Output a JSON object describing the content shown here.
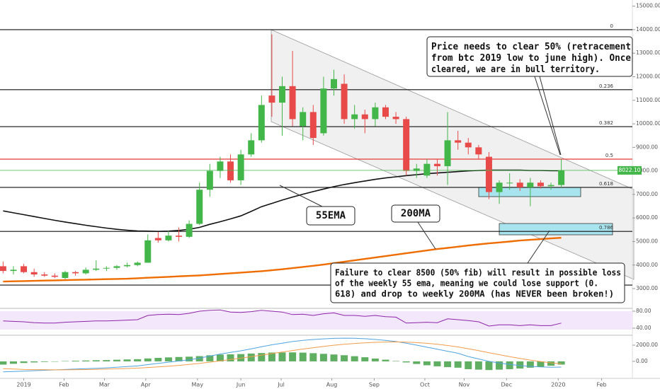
{
  "chart_data": [
    {
      "type": "candlestick",
      "xlim": [
        -0.3,
        59.3
      ],
      "ylim": [
        2190,
        15260
      ],
      "yticks": [
        {
          "value": 3000,
          "label": "3000.00"
        },
        {
          "value": 4000,
          "label": "4000.00"
        },
        {
          "value": 5000,
          "label": "5000.00"
        },
        {
          "value": 6000,
          "label": "6000.00"
        },
        {
          "value": 7000,
          "label": "7000.00"
        },
        {
          "value": 8000,
          "label": "8000.00"
        },
        {
          "value": 9000,
          "label": "9000.00"
        },
        {
          "value": 10000,
          "label": "10000.00"
        },
        {
          "value": 11000,
          "label": "11000.00"
        },
        {
          "value": 12000,
          "label": "12000.00"
        },
        {
          "value": 13000,
          "label": "13000.00"
        },
        {
          "value": 14000,
          "label": "14000.00"
        },
        {
          "value": 15000,
          "label": "15000.00"
        }
      ],
      "xticks": [
        {
          "value": 2.0,
          "label": "2019"
        },
        {
          "value": 5.9,
          "label": "Feb"
        },
        {
          "value": 9.8,
          "label": "Mar"
        },
        {
          "value": 13.8,
          "label": "Apr"
        },
        {
          "value": 18.8,
          "label": "May"
        },
        {
          "value": 23.0,
          "label": "Jun"
        },
        {
          "value": 26.9,
          "label": "Jul"
        },
        {
          "value": 31.8,
          "label": "Aug"
        },
        {
          "value": 35.9,
          "label": "Sep"
        },
        {
          "value": 40.8,
          "label": "Oct"
        },
        {
          "value": 44.6,
          "label": "Nov"
        },
        {
          "value": 48.7,
          "label": "Dec"
        },
        {
          "value": 53.7,
          "label": "2020"
        },
        {
          "value": 57.9,
          "label": "Feb"
        }
      ],
      "open": [
        3950,
        3750,
        3950,
        3700,
        3600,
        3550,
        3450,
        3700,
        3650,
        3800,
        3850,
        3880,
        3950,
        4000,
        4100,
        5150,
        5050,
        5250,
        5200,
        5750,
        7200,
        8000,
        8400,
        7600,
        8700,
        9300,
        11200,
        10900,
        11600,
        9900,
        10500,
        9600,
        11500,
        11700,
        10200,
        10400,
        10200,
        10700,
        10300,
        10200,
        8000,
        7800,
        8300,
        8200,
        9300,
        9200,
        9000,
        8600,
        7100,
        7500,
        7500,
        7300,
        7500,
        7350,
        7400
      ],
      "high": [
        4150,
        3950,
        4050,
        3850,
        3700,
        3650,
        3750,
        3750,
        3900,
        4200,
        3950,
        4000,
        4100,
        4150,
        5300,
        5400,
        5450,
        5600,
        5900,
        7500,
        8300,
        8600,
        8700,
        8900,
        9600,
        11200,
        13800,
        12000,
        13100,
        10700,
        10800,
        12000,
        12300,
        12100,
        10800,
        10600,
        10900,
        10800,
        10500,
        10300,
        8300,
        8500,
        8500,
        10500,
        9700,
        9400,
        9100,
        8800,
        7600,
        7900,
        7650,
        7700,
        7600,
        7500,
        8500
      ],
      "low": [
        3650,
        3600,
        3650,
        3500,
        3500,
        3450,
        3400,
        3550,
        3600,
        3750,
        3750,
        3800,
        3900,
        3950,
        4100,
        4950,
        5000,
        5000,
        5150,
        5700,
        6900,
        7700,
        7500,
        7400,
        8600,
        9200,
        10300,
        9500,
        9900,
        9300,
        9100,
        9500,
        11200,
        10000,
        9800,
        9600,
        9900,
        10200,
        10000,
        7800,
        7700,
        7700,
        7800,
        7400,
        8900,
        8700,
        8500,
        6800,
        6600,
        7200,
        7150,
        6500,
        7250,
        7200,
        7300
      ],
      "close": [
        3750,
        3800,
        3700,
        3600,
        3550,
        3500,
        3700,
        3650,
        3800,
        3850,
        3880,
        3950,
        4000,
        4100,
        5050,
        5050,
        5250,
        5200,
        5750,
        7200,
        8000,
        8400,
        7600,
        8700,
        9300,
        10800,
        10900,
        11600,
        10200,
        10500,
        9400,
        11500,
        11900,
        10200,
        10400,
        10200,
        10700,
        10300,
        10200,
        8000,
        8100,
        8300,
        8200,
        9300,
        9200,
        9000,
        8700,
        7100,
        7500,
        7500,
        7300,
        7500,
        7350,
        7400,
        8022.1
      ],
      "up_color": "#43b649",
      "down_color": "#e84a4a",
      "last_price_label": "8022.10",
      "series": [
        {
          "name": "55EMA",
          "color": "#111111",
          "values": [
            6300,
            6220,
            6140,
            6060,
            5980,
            5900,
            5830,
            5760,
            5690,
            5630,
            5570,
            5520,
            5480,
            5450,
            5440,
            5430,
            5440,
            5470,
            5520,
            5600,
            5730,
            5840,
            5960,
            6090,
            6280,
            6480,
            6620,
            6760,
            6890,
            7010,
            7120,
            7230,
            7330,
            7420,
            7500,
            7570,
            7640,
            7700,
            7750,
            7800,
            7840,
            7880,
            7910,
            7940,
            7970,
            8000,
            8020,
            8030,
            8030,
            8030,
            8030,
            8020,
            8020,
            8010,
            8010
          ]
        },
        {
          "name": "200MA",
          "color": "#ef6c00",
          "values": [
            3300,
            3310,
            3320,
            3330,
            3340,
            3350,
            3360,
            3370,
            3380,
            3390,
            3400,
            3410,
            3420,
            3440,
            3460,
            3480,
            3500,
            3520,
            3540,
            3560,
            3590,
            3620,
            3650,
            3680,
            3710,
            3740,
            3780,
            3820,
            3870,
            3920,
            3970,
            4020,
            4080,
            4140,
            4200,
            4260,
            4320,
            4380,
            4440,
            4500,
            4560,
            4620,
            4680,
            4730,
            4780,
            4830,
            4880,
            4920,
            4960,
            5000,
            5040,
            5070,
            5100,
            5130,
            5160
          ]
        }
      ],
      "levels": [
        {
          "value": 14000,
          "label": "0",
          "color": "#111111"
        },
        {
          "value": 11450,
          "label": "0.236",
          "color": "#111111"
        },
        {
          "value": 9880,
          "label": "0.382",
          "color": "#111111"
        },
        {
          "value": 8500,
          "label": "0.5",
          "color": "#e53935"
        },
        {
          "value": 7300,
          "label": "0.618",
          "color": "#111111"
        },
        {
          "value": 5430,
          "label": "0.786",
          "color": "#111111"
        }
      ],
      "support": 3150,
      "annotations": [
        {
          "lines": [
            "Price needs to clear 50% (retracement",
            "from btc 2019 low to june high). Once",
            "cleared, we are in bull territory."
          ]
        },
        {
          "lines": [
            "Failure to clear 8500 (50% fib) will result in possible loss",
            "of the weekly 55 ema, meaning we could lose support (0.",
            "618) and drop to weekly 200MA (has NEVER been broken!)"
          ]
        }
      ]
    },
    {
      "type": "line",
      "ylim": [
        25,
        85
      ],
      "yticks": [
        {
          "value": 80,
          "label": "80.00"
        },
        {
          "value": 40,
          "label": "40.00"
        }
      ],
      "series": [
        {
          "color": "#8e24aa",
          "values": [
            57,
            56,
            55,
            53,
            52,
            52,
            54,
            55,
            56,
            57,
            57,
            58,
            59,
            60,
            70,
            72,
            73,
            72,
            75,
            80,
            82,
            83,
            78,
            77,
            79,
            82,
            80,
            78,
            72,
            73,
            70,
            74,
            76,
            70,
            70,
            68,
            70,
            67,
            66,
            52,
            53,
            54,
            53,
            62,
            60,
            58,
            55,
            45,
            48,
            48,
            46,
            48,
            46,
            46,
            52
          ]
        }
      ]
    },
    {
      "type": "macd",
      "ylim": [
        -2100,
        3050
      ],
      "yticks": [
        {
          "value": 2000,
          "label": "2000.00"
        },
        {
          "value": 0,
          "label": "0.00"
        }
      ],
      "series": [
        {
          "color": "#4fa3e0",
          "values": [
            -1300,
            -1250,
            -1200,
            -1150,
            -1100,
            -1050,
            -1000,
            -950,
            -900,
            -850,
            -800,
            -720,
            -640,
            -560,
            -400,
            -250,
            -100,
            50,
            200,
            400,
            650,
            900,
            1100,
            1300,
            1550,
            1800,
            2050,
            2250,
            2450,
            2600,
            2700,
            2780,
            2840,
            2870,
            2850,
            2800,
            2700,
            2600,
            2450,
            2250,
            2000,
            1750,
            1500,
            1250,
            1000,
            600,
            300,
            0,
            -200,
            -380,
            -520,
            -620,
            -690,
            -720,
            -700
          ]
        },
        {
          "color": "#f39c4a",
          "values": [
            -900,
            -950,
            -1000,
            -1020,
            -1030,
            -1040,
            -1040,
            -1030,
            -1010,
            -990,
            -960,
            -920,
            -880,
            -830,
            -760,
            -680,
            -590,
            -490,
            -380,
            -250,
            -100,
            60,
            230,
            400,
            580,
            770,
            960,
            1150,
            1340,
            1520,
            1690,
            1850,
            1990,
            2110,
            2210,
            2290,
            2350,
            2390,
            2400,
            2380,
            2320,
            2230,
            2110,
            1960,
            1780,
            1560,
            1320,
            1070,
            820,
            580,
            360,
            160,
            -20,
            -180,
            -300
          ]
        }
      ],
      "histogram": {
        "color": "#43a047",
        "values": [
          -400,
          -300,
          -200,
          -130,
          -70,
          -10,
          40,
          80,
          110,
          140,
          160,
          200,
          240,
          270,
          360,
          430,
          490,
          540,
          580,
          650,
          750,
          840,
          870,
          900,
          970,
          1030,
          1090,
          1100,
          1110,
          1080,
          1010,
          930,
          850,
          760,
          640,
          510,
          350,
          210,
          50,
          -130,
          -320,
          -480,
          -610,
          -710,
          -780,
          -960,
          -1020,
          -1070,
          -1020,
          -960,
          -880,
          -780,
          -670,
          -540,
          -400
        ]
      }
    }
  ]
}
